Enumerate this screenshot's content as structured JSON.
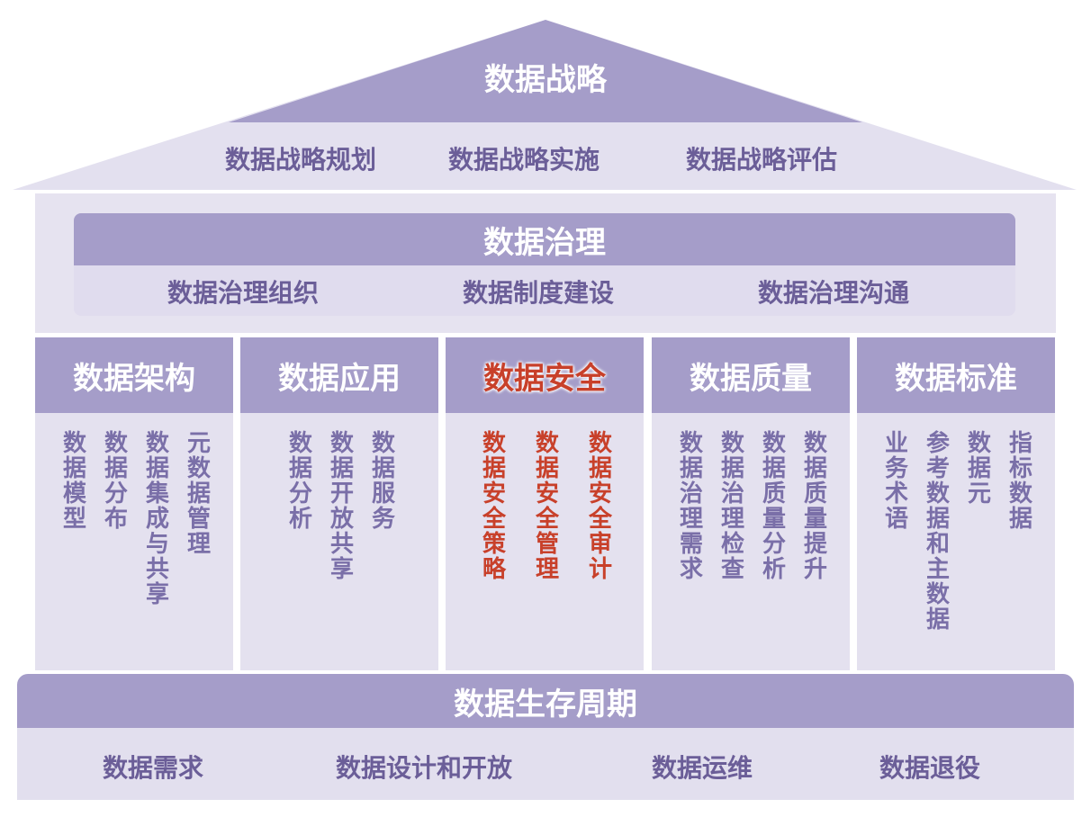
{
  "strategy": {
    "title": "数据战略",
    "items": [
      "数据战略规划",
      "数据战略实施",
      "数据战略评估"
    ]
  },
  "governance": {
    "title": "数据治理",
    "items": [
      "数据治理组织",
      "数据制度建设",
      "数据治理沟通"
    ]
  },
  "pillars": [
    {
      "title": "数据架构",
      "items": [
        "数据模型",
        "数据分布",
        "数据集成与共享",
        "元数据管理"
      ]
    },
    {
      "title": "数据应用",
      "items": [
        "数据分析",
        "数据开放共享",
        "数据服务"
      ]
    },
    {
      "title": "数据安全",
      "items": [
        "数据安全策略",
        "数据安全管理",
        "数据安全审计"
      ]
    },
    {
      "title": "数据质量",
      "items": [
        "数据治理需求",
        "数据治理检查",
        "数据质量分析",
        "数据质量提升"
      ]
    },
    {
      "title": "数据标准",
      "items": [
        "业务术语",
        "参考数据和主数据",
        "数据元",
        "指标数据"
      ]
    }
  ],
  "lifecycle": {
    "title": "数据生存周期",
    "items": [
      "数据需求",
      "数据设计和开放",
      "数据运维",
      "数据退役"
    ]
  },
  "colors": {
    "dark_purple": "#a59dc9",
    "light_purple": "#e4e1ef",
    "text_purple": "#6b5e98",
    "highlight_red": "#c8402a"
  }
}
